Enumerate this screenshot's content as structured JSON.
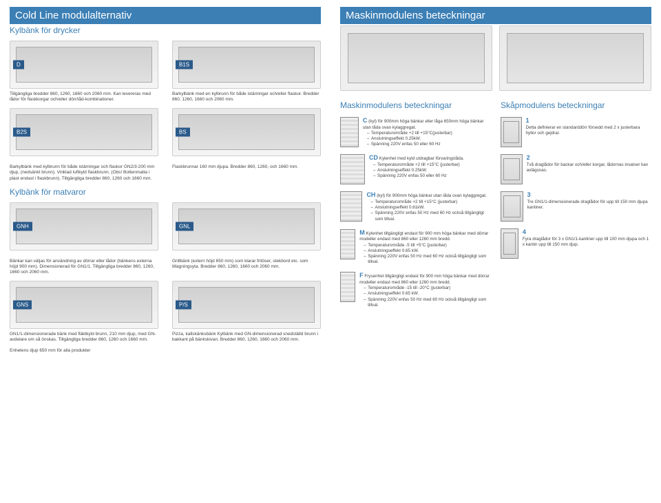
{
  "left": {
    "title": "Cold Line modulalternativ",
    "sub": "Kylbänk för drycker",
    "r1": {
      "a": {
        "badge": "D",
        "desc": "Tillgängliga bredder 860, 1260, 1660 och 2060 mm. Kan levereras med lådor för flaskkorgar och/eller dörr/låd-kombinationer."
      },
      "b": {
        "badge": "B1S",
        "desc": "Barkylbänk med en kylbrunn för både istärningar och/eller flaskor. Bredder 860, 1260, 1660 och 2060 mm."
      }
    },
    "r2": {
      "a": {
        "badge": "B2S"
      },
      "b": {
        "badge": "BS"
      }
    },
    "r3": {
      "a": {
        "desc": "Barkylbänk med kylbrunn för både istärningar och flaskor GN2/3-200 mm djup, (nedsänkt brunn). Vinklad luftkyld flaskbrunn. (Obs! Bottenmatta i plast endast i flaskbrunn). Tillgängliga bredder 860, 1260 och 1660 mm."
      },
      "b": {
        "desc": "Flaskbrunnar 160 mm djupa. Bredder 860, 1260, och 1660 mm."
      }
    },
    "sub2": "Kylbänk för matvaror",
    "r4": {
      "a": {
        "badge": "GNH"
      },
      "b": {
        "badge": "GNL"
      }
    },
    "r5": {
      "a": {
        "desc": "Bänkar kan väljas för användning av dörrar eller lådor (bänkens externa höjd 900 mm). Dimensionerad för GN1/1. Tillgängliga bredder 860, 1260, 1660 och 2060 mm."
      },
      "b": {
        "desc": "Grillbänk (extern höjd 650 mm) som klarar fritöser, stekbord etc. som tillagningsyta. Bredder 860, 1260, 1660 och 2060 mm."
      }
    },
    "r6": {
      "a": {
        "badge": "GNS",
        "desc": "GN1/1-dimensionerade bänk med fläktkyld brunn, 210 mm djup, med GN-avdelare om så önskas. Tillgängliga bredder 860, 1260 och 1660 mm."
      },
      "b": {
        "badge": "P/S",
        "desc": "Pizza, kallskänksbänk Kylbänk med GN-dimensionerad snedställd brunn i bakkant på bänkskivan. Bredder 860, 1260, 1660 och 2060 mm."
      }
    },
    "footer": "Enhetens djup 650 mm för alla produkter"
  },
  "right": {
    "title": "Maskinmodulens beteckningar",
    "h1": "Maskinmodulens beteckningar",
    "h2": "Skåpmodulens beteckningar",
    "c": {
      "code": "C",
      "head": "(kyl) för 900mm höga bänkar eller låga 650mm höga bänkar utan låda ovan kylaggregat.",
      "list": [
        "Temperaturområde +2 till +15°C(justerbar)",
        "Anslutningseffekt 0.25kW.",
        "Spänning 220V enfas 50 eller 60 Hz"
      ]
    },
    "cd": {
      "code": "CD",
      "head": "Kylenhet med kyld utdragbar förvaringslåda.",
      "list": [
        "Temperaturområde +2 till +15°C (justerbar)",
        "Anslutningseffekt 0.25kW.",
        "Spänning 220V enfas 50 eller 60 Hz"
      ]
    },
    "ch": {
      "code": "CH",
      "head": "(kyl) för 900mm höga bänkar utan låda ovan kylaggregat.",
      "list": [
        "Temperaturområde +2 till +15°C (justerbar)",
        "Anslutningseffekt 0.61kW.",
        "Spänning 220V enfas 50 Hz med 60 Hz också tillgängligt som tillval."
      ]
    },
    "m": {
      "code": "M",
      "head": "Kylenhet tillgängligt endast för 900 mm höga bänkar med dörrar modeller endast med 860 eller 1260 mm bredd.",
      "list": [
        "Temperaturområde -5 till +5°C (justerbar)",
        "Anslutningseffekt 0.65 kW.",
        "Spänning 220V enfas 50 Hz med 60 Hz också tillgängligt som tillval."
      ]
    },
    "f": {
      "code": "F",
      "head": "Frysenhet tillgängligt endast för 900 mm höga bänkar med dörrar modeller endast med 860 eller 1260 mm bredd.",
      "list": [
        "Temperaturområde -15 till -20°C (justerbar)",
        "Anslutningseffekt 0.65 kW.",
        "Spänning 220V enfas 50 Hz med 60 Hz också tillgängligt som tillval."
      ]
    },
    "n1": {
      "code": "1",
      "text": "Detta definierar en standarddörr försedd med 2 x justerbara hyllor och gejdrar."
    },
    "n2": {
      "code": "2",
      "text": "Två draglådor för backar och/eller korgar, lådornas insatser kan avlägsnas."
    },
    "n3": {
      "code": "3",
      "text": "Tre GN1/1-dimensionerade draglådor för upp till 150 mm djupa kantiner."
    },
    "n4": {
      "code": "4",
      "text": "Fyra draglådor för 3 x GN1/1-kantiner upp till 100 mm djupa och 1 x kantin upp till 150 mm djup."
    }
  }
}
